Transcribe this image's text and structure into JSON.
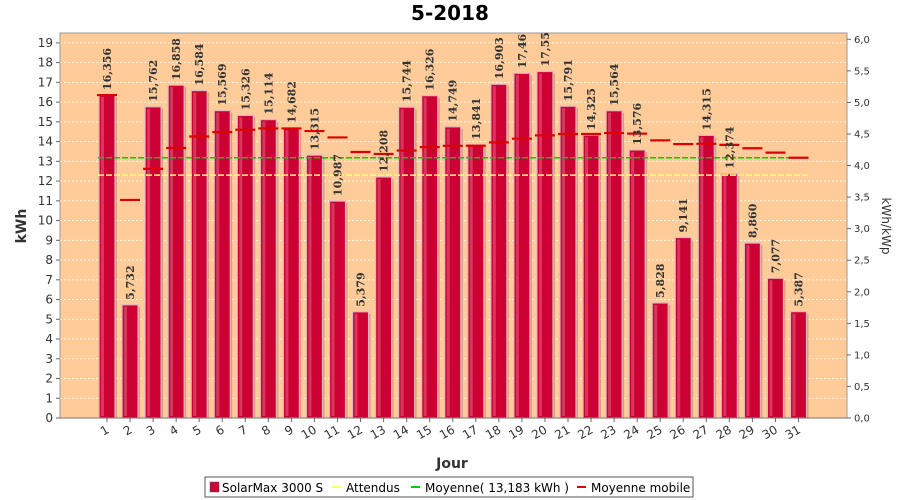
{
  "chart_data": {
    "type": "bar",
    "title": "5-2018",
    "xlabel": "Jour",
    "ylabel": "kWh",
    "ylabel_right": "kWh/kWp",
    "ylim": [
      0,
      19.5
    ],
    "ylim_right": [
      0,
      6.1
    ],
    "yticks": [
      "0",
      "1",
      "2",
      "3",
      "4",
      "5",
      "6",
      "7",
      "8",
      "9",
      "10",
      "11",
      "12",
      "13",
      "14",
      "15",
      "16",
      "17",
      "18",
      "19"
    ],
    "yticks_right": [
      "0,0",
      "0,5",
      "1,0",
      "1,5",
      "2,0",
      "2,5",
      "3,0",
      "3,5",
      "4,0",
      "4,5",
      "5,0",
      "5,5",
      "6,0"
    ],
    "categories": [
      "1",
      "2",
      "3",
      "4",
      "5",
      "6",
      "7",
      "8",
      "9",
      "10",
      "11",
      "12",
      "13",
      "14",
      "15",
      "16",
      "17",
      "18",
      "19",
      "20",
      "21",
      "22",
      "23",
      "24",
      "25",
      "26",
      "27",
      "28",
      "29",
      "30",
      "31"
    ],
    "series": [
      {
        "name": "SolarMax 3000 S",
        "type": "bar",
        "color": "#cc0033",
        "values": [
          16.356,
          5.732,
          15.762,
          16.858,
          16.584,
          15.569,
          15.326,
          15.114,
          14.682,
          13.315,
          10.987,
          5.379,
          12.208,
          15.744,
          16.326,
          14.749,
          13.841,
          16.903,
          17.46,
          17.55,
          15.791,
          14.325,
          15.564,
          13.576,
          5.828,
          9.141,
          14.315,
          12.374,
          8.86,
          7.077,
          5.387
        ],
        "labels": [
          "16,356",
          "5,732",
          "15,762",
          "16,858",
          "16,584",
          "15,569",
          "15,326",
          "15,114",
          "14,682",
          "13,315",
          "10,987",
          "5,379",
          "12,208",
          "15,744",
          "16,326",
          "14,749",
          "13,841",
          "16,903",
          "17,46",
          "17,55",
          "15,791",
          "14,325",
          "15,564",
          "13,576",
          "5,828",
          "9,141",
          "14,315",
          "12,374",
          "8,860",
          "7,077",
          "5,387"
        ]
      },
      {
        "name": "Attendus",
        "type": "line",
        "color": "#ffff66",
        "value": 12.3
      },
      {
        "name": "Moyenne( 13,183 kWh )",
        "type": "line",
        "color": "#00cc00",
        "value": 13.183
      },
      {
        "name": "Moyenne mobile",
        "type": "step",
        "color": "#dd0000",
        "values": [
          16.356,
          11.044,
          12.617,
          13.677,
          14.259,
          14.48,
          14.601,
          14.665,
          14.667,
          14.532,
          14.21,
          13.473,
          13.375,
          13.545,
          13.72,
          13.785,
          13.788,
          13.962,
          14.146,
          14.316,
          14.386,
          14.383,
          14.432,
          14.403,
          14.061,
          13.871,
          13.888,
          13.833,
          13.661,
          13.441,
          13.182
        ]
      }
    ],
    "grid": true,
    "legend_position": "bottom",
    "background_color": "#ffcc99"
  },
  "legend": [
    {
      "label": "SolarMax 3000 S",
      "color": "#cc0033",
      "kind": "box"
    },
    {
      "label": "Attendus",
      "color": "#ffff66",
      "kind": "line"
    },
    {
      "label": "Moyenne( 13,183 kWh )",
      "color": "#00cc00",
      "kind": "line"
    },
    {
      "label": "Moyenne mobile",
      "color": "#dd0000",
      "kind": "line"
    }
  ]
}
